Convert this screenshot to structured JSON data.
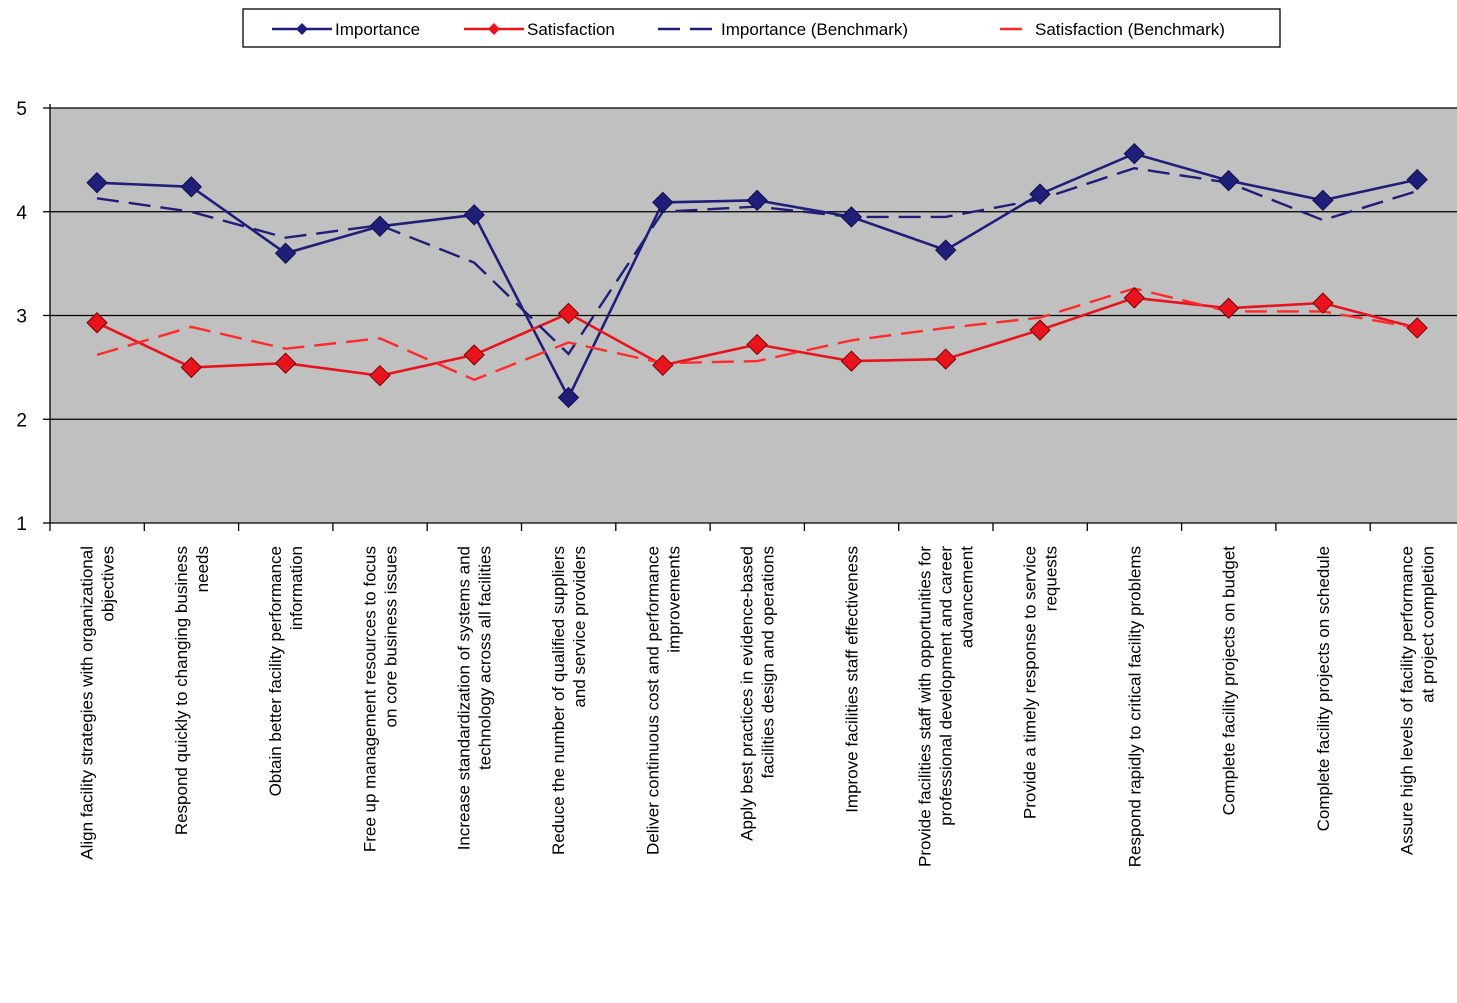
{
  "chart_data": {
    "type": "line",
    "title": "",
    "xlabel": "",
    "ylabel": "",
    "ylim": [
      1,
      5
    ],
    "yticks": [
      "1",
      "2",
      "3",
      "4",
      "5"
    ],
    "grid": "horizontal",
    "legend_position": "top",
    "categories": [
      [
        "Align facility strategies with organizational",
        "objectives"
      ],
      [
        "Respond quickly to changing business",
        "needs"
      ],
      [
        "Obtain better facility performance",
        "information"
      ],
      [
        "Free up management resources to focus",
        "on core business issues"
      ],
      [
        "Increase standardization  of systems and",
        "technology across all facilities"
      ],
      [
        "Reduce the number of qualified suppliers",
        "and service providers"
      ],
      [
        "Deliver continuous cost and performance",
        "improvements"
      ],
      [
        "Apply best practices in evidence-based",
        "facilities design  and operations"
      ],
      [
        "Improve facilities staff effectiveness"
      ],
      [
        "Provide facilities staff with opportunities for",
        "professional development and career",
        "advancement"
      ],
      [
        "Provide a timely response to service",
        "requests"
      ],
      [
        "Respond rapidly to critical facility problems"
      ],
      [
        "Complete facility projects on budget"
      ],
      [
        "Complete facility projects on schedule"
      ],
      [
        "Assure high levels of facility performance",
        "at project completion"
      ]
    ],
    "series": [
      {
        "name": "Importance",
        "color": "#1f1f7a",
        "style": "solid",
        "marker": "diamond",
        "values": [
          4.28,
          4.24,
          3.6,
          3.86,
          3.97,
          2.21,
          4.09,
          4.11,
          3.95,
          3.63,
          4.17,
          4.56,
          4.3,
          4.11,
          4.31
        ]
      },
      {
        "name": "Satisfaction",
        "color": "#e8131c",
        "style": "solid",
        "marker": "diamond",
        "values": [
          2.93,
          2.5,
          2.54,
          2.42,
          2.62,
          3.02,
          2.52,
          2.72,
          2.56,
          2.58,
          2.86,
          3.17,
          3.07,
          3.12,
          2.88
        ]
      },
      {
        "name": "Importance (Benchmark)",
        "color": "#1f1f7a",
        "style": "dashed",
        "marker": "none",
        "values": [
          4.13,
          4.0,
          3.75,
          3.87,
          3.51,
          2.63,
          4.0,
          4.05,
          3.95,
          3.95,
          4.12,
          4.42,
          4.28,
          3.92,
          4.2
        ]
      },
      {
        "name": "Satisfaction (Benchmark)",
        "color": "#ff2a2a",
        "style": "dashed",
        "marker": "none",
        "values": [
          2.62,
          2.89,
          2.68,
          2.78,
          2.38,
          2.74,
          2.54,
          2.56,
          2.76,
          2.88,
          2.98,
          3.26,
          3.04,
          3.04,
          2.88
        ]
      }
    ]
  }
}
